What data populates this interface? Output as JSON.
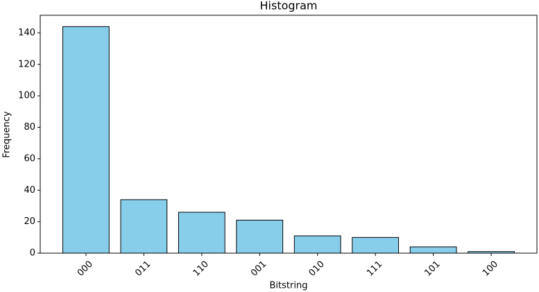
{
  "chart_data": {
    "type": "bar",
    "title": "Histogram",
    "x_label": "Bitstring",
    "y_label": "Frequency",
    "categories": [
      "000",
      "011",
      "110",
      "001",
      "010",
      "111",
      "101",
      "100"
    ],
    "values": [
      144,
      34,
      26,
      21,
      11,
      10,
      4,
      1
    ],
    "color": "#87ceeb",
    "edge_color": "#000000",
    "ylim": [
      0,
      151.2
    ],
    "yticks": [
      0,
      20,
      40,
      60,
      80,
      100,
      120,
      140
    ],
    "grid": false
  }
}
